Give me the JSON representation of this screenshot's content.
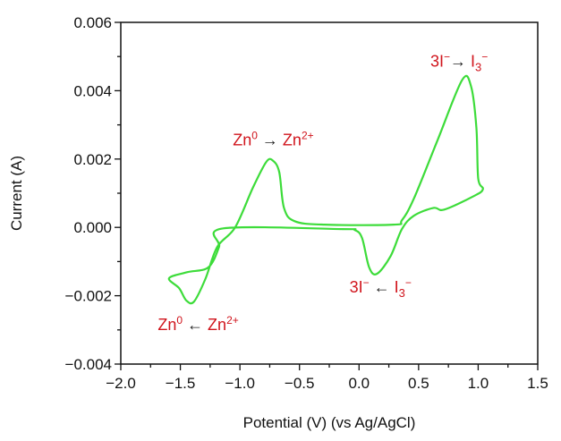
{
  "chart_data": {
    "type": "line",
    "title": "",
    "xlabel": "Potential (V) (vs Ag/AgCl)",
    "ylabel": "Current (A)",
    "xlim": [
      -2.0,
      1.5
    ],
    "ylim": [
      -0.004,
      0.006
    ],
    "x_ticks": [
      "−2.0",
      "−1.5",
      "−1.0",
      "−0.5",
      "0.0",
      "0.5",
      "1.0",
      "1.5"
    ],
    "x_tick_values": [
      -2.0,
      -1.5,
      -1.0,
      -0.5,
      0.0,
      0.5,
      1.0,
      1.5
    ],
    "y_ticks": [
      "−0.004",
      "−0.002",
      "0.000",
      "0.002",
      "0.004",
      "0.006"
    ],
    "y_tick_values": [
      -0.004,
      -0.002,
      0.0,
      0.002,
      0.004,
      0.006
    ],
    "grid": false,
    "line_color": "#3ddc3a",
    "annotation_color": "#d0141c",
    "series": [
      {
        "closed": true,
        "x": [
          -1.595,
          -1.51,
          -1.45,
          -1.385,
          -1.29,
          -1.19,
          -1.04,
          -0.89,
          -0.78,
          -0.725,
          -0.67,
          -0.63,
          -0.54,
          -0.29,
          0.29,
          0.36,
          0.46,
          0.66,
          0.865,
          0.94,
          0.985,
          1.0,
          1.04,
          0.96,
          0.715,
          0.625,
          0.46,
          0.36,
          0.265,
          0.15,
          0.085,
          0.025,
          -0.035,
          -0.14,
          -1.14,
          -1.175,
          -1.265,
          -1.44
        ],
        "y": [
          -0.00149,
          -0.00178,
          -0.00214,
          -0.00217,
          -0.00151,
          -0.00057,
          0.0,
          0.00117,
          0.00191,
          0.00196,
          0.00162,
          0.00057,
          0.00018,
          8e-05,
          8e-05,
          0.00021,
          0.00084,
          0.00256,
          0.00431,
          0.00413,
          0.00292,
          0.00144,
          0.00112,
          0.00091,
          0.00052,
          0.00057,
          0.00034,
          -5e-05,
          -0.00084,
          -0.00136,
          -0.00117,
          -0.00031,
          -8e-05,
          -5e-05,
          -3e-05,
          -0.00057,
          -0.00117,
          -0.00131
        ]
      }
    ],
    "annotations": [
      {
        "name": "zn-oxidation-label",
        "x": -0.72,
        "y": 0.0024,
        "parts": [
          {
            "t": "Zn"
          },
          {
            "t": "0",
            "s": "sup"
          },
          {
            "t": " → ",
            "a": 1
          },
          {
            "t": "Zn"
          },
          {
            "t": "2+",
            "s": "sup"
          }
        ]
      },
      {
        "name": "zn-reduction-label",
        "x": -1.35,
        "y": -0.003,
        "parts": [
          {
            "t": "Zn"
          },
          {
            "t": "0",
            "s": "sup"
          },
          {
            "t": " ← ",
            "a": 1
          },
          {
            "t": "Zn"
          },
          {
            "t": "2+",
            "s": "sup"
          }
        ]
      },
      {
        "name": "iodide-oxidation-label",
        "x": 0.84,
        "y": 0.0047,
        "parts": [
          {
            "t": "3I"
          },
          {
            "t": "−",
            "s": "sup"
          },
          {
            "t": "→ ",
            "a": 1
          },
          {
            "t": "I"
          },
          {
            "t": "3",
            "s": "sub"
          },
          {
            "t": "−",
            "s": "sup2"
          }
        ]
      },
      {
        "name": "iodide-reduction-label",
        "x": 0.18,
        "y": -0.0019,
        "parts": [
          {
            "t": "3I"
          },
          {
            "t": "−",
            "s": "sup"
          },
          {
            "t": " ← ",
            "a": 1
          },
          {
            "t": "I"
          },
          {
            "t": "3",
            "s": "sub"
          },
          {
            "t": "−",
            "s": "sup2"
          }
        ]
      }
    ]
  }
}
